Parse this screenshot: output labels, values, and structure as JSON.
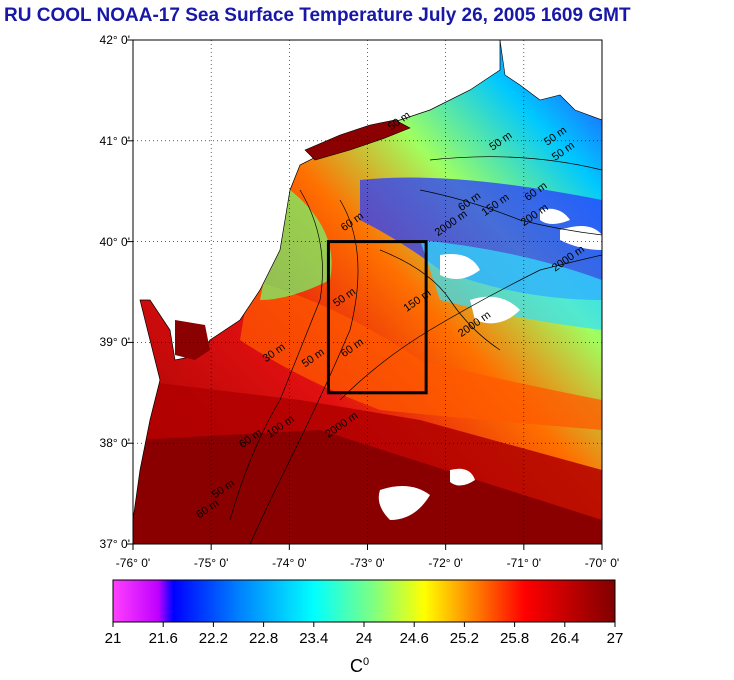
{
  "title": "RU COOL  NOAA-17 Sea Surface Temperature July 26, 2005 1609 GMT",
  "map": {
    "lat_ticks": [
      "42° 0'",
      "41° 0'",
      "40° 0'",
      "39° 0'",
      "38° 0'",
      "37° 0'"
    ],
    "lon_ticks": [
      "-76° 0'",
      "-75° 0'",
      "-74° 0'",
      "-73° 0'",
      "-72° 0'",
      "-71° 0'",
      "-70° 0'"
    ],
    "lat_values": [
      42,
      41,
      40,
      39,
      38,
      37
    ],
    "lon_values": [
      -76,
      -75,
      -74,
      -73,
      -72,
      -71,
      -70
    ],
    "lat_range": [
      37,
      42
    ],
    "lon_range": [
      -76,
      -70
    ],
    "study_box": {
      "lon_min": -73.5,
      "lon_max": -72.25,
      "lat_min": 38.5,
      "lat_max": 40.0
    },
    "isobath_labels": [
      {
        "text": "50 m",
        "lon": -72.7,
        "lat": 41.1
      },
      {
        "text": "50 m",
        "lon": -71.4,
        "lat": 40.9
      },
      {
        "text": "50 m",
        "lon": -70.7,
        "lat": 40.95
      },
      {
        "text": "50 m",
        "lon": -70.6,
        "lat": 40.8
      },
      {
        "text": "60 m",
        "lon": -71.8,
        "lat": 40.3
      },
      {
        "text": "150 m",
        "lon": -71.5,
        "lat": 40.25
      },
      {
        "text": "60 m",
        "lon": -70.95,
        "lat": 40.4
      },
      {
        "text": "200 m",
        "lon": -71.0,
        "lat": 40.15
      },
      {
        "text": "60 m",
        "lon": -73.3,
        "lat": 40.1
      },
      {
        "text": "2000 m",
        "lon": -72.1,
        "lat": 40.05
      },
      {
        "text": "2000 m",
        "lon": -70.6,
        "lat": 39.7
      },
      {
        "text": "50 m",
        "lon": -73.4,
        "lat": 39.35
      },
      {
        "text": "150 m",
        "lon": -72.5,
        "lat": 39.3
      },
      {
        "text": "2000 m",
        "lon": -71.8,
        "lat": 39.05
      },
      {
        "text": "30 m",
        "lon": -74.3,
        "lat": 38.8
      },
      {
        "text": "50 m",
        "lon": -73.8,
        "lat": 38.75
      },
      {
        "text": "60 m",
        "lon": -73.3,
        "lat": 38.85
      },
      {
        "text": "2000 m",
        "lon": -73.5,
        "lat": 38.05
      },
      {
        "text": "100 m",
        "lon": -74.25,
        "lat": 38.05
      },
      {
        "text": "60 m",
        "lon": -74.6,
        "lat": 37.95
      },
      {
        "text": "50 m",
        "lon": -74.95,
        "lat": 37.45
      },
      {
        "text": "60 m",
        "lon": -75.15,
        "lat": 37.25
      }
    ]
  },
  "colorbar": {
    "min": 21,
    "max": 27,
    "tick_labels": [
      "21",
      "21.6",
      "22.2",
      "22.8",
      "23.4",
      "24",
      "24.6",
      "25.2",
      "25.8",
      "26.4",
      "27"
    ],
    "tick_values": [
      21,
      21.6,
      22.2,
      22.8,
      23.4,
      24,
      24.6,
      25.2,
      25.8,
      26.4,
      27
    ],
    "unit_label": "C",
    "unit_superscript": "0",
    "colors": [
      "#ff00ff",
      "#0000ff",
      "#00b4ff",
      "#00ffff",
      "#7fff7f",
      "#ffff00",
      "#ff8000",
      "#ff0000",
      "#800000"
    ]
  },
  "colors": {
    "title": "#1818a8",
    "land": "#ffffff",
    "warm": "#8b0000",
    "box": "#000000"
  }
}
